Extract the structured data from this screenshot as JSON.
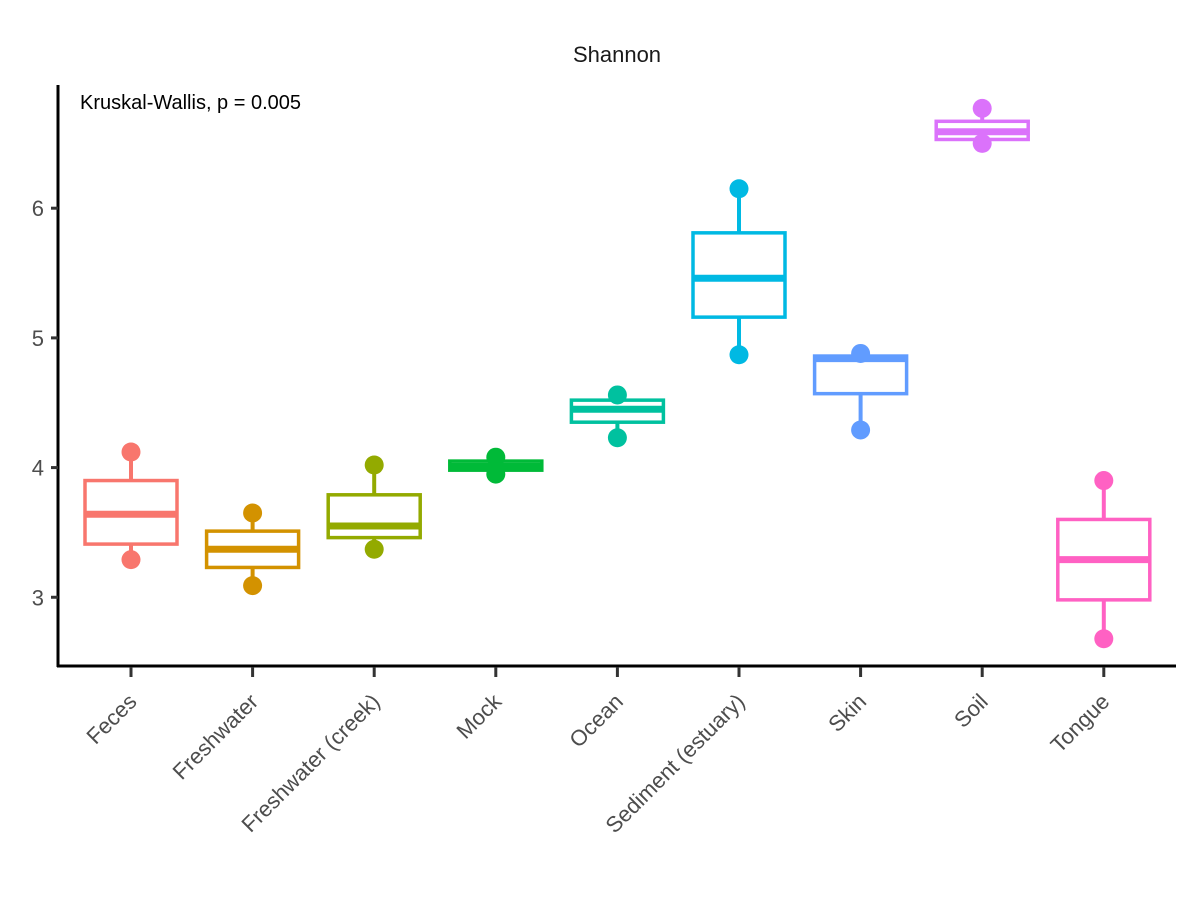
{
  "chart_data": {
    "type": "box",
    "title": "Shannon",
    "annotation": "Kruskal-Wallis, p = 0.005",
    "xlabel": "",
    "ylabel": "",
    "ylim": [
      2.47,
      6.95
    ],
    "yticks": [
      3,
      4,
      5,
      6
    ],
    "grid": false,
    "legend": "none",
    "categories": [
      "Feces",
      "Freshwater",
      "Freshwater (creek)",
      "Mock",
      "Ocean",
      "Sediment (estuary)",
      "Skin",
      "Soil",
      "Tongue"
    ],
    "boxes": [
      {
        "category": "Feces",
        "color": "#F8766D",
        "q1": 3.41,
        "median": 3.64,
        "q3": 3.9,
        "whisker_low": 3.29,
        "whisker_high": 4.12,
        "points": [
          3.29,
          4.12
        ]
      },
      {
        "category": "Freshwater",
        "color": "#D39200",
        "q1": 3.23,
        "median": 3.37,
        "q3": 3.51,
        "whisker_low": 3.09,
        "whisker_high": 3.65,
        "points": [
          3.09,
          3.65
        ]
      },
      {
        "category": "Freshwater (creek)",
        "color": "#93AA00",
        "q1": 3.46,
        "median": 3.55,
        "q3": 3.79,
        "whisker_low": 3.37,
        "whisker_high": 4.02,
        "points": [
          3.37,
          4.02
        ]
      },
      {
        "category": "Mock",
        "color": "#00BA38",
        "q1": 3.98,
        "median": 4.01,
        "q3": 4.05,
        "whisker_low": 3.95,
        "whisker_high": 4.08,
        "points": [
          3.95,
          4.08
        ]
      },
      {
        "category": "Ocean",
        "color": "#00C19F",
        "q1": 4.35,
        "median": 4.45,
        "q3": 4.52,
        "whisker_low": 4.23,
        "whisker_high": 4.56,
        "points": [
          4.23,
          4.56
        ]
      },
      {
        "category": "Sediment (estuary)",
        "color": "#00B9E3",
        "q1": 5.16,
        "median": 5.46,
        "q3": 5.81,
        "whisker_low": 4.87,
        "whisker_high": 6.15,
        "points": [
          4.87,
          6.15
        ]
      },
      {
        "category": "Skin",
        "color": "#619CFF",
        "q1": 4.57,
        "median": 4.84,
        "q3": 4.86,
        "whisker_low": 4.29,
        "whisker_high": 4.88,
        "points": [
          4.29,
          4.88
        ]
      },
      {
        "category": "Soil",
        "color": "#DB72FB",
        "q1": 6.53,
        "median": 6.59,
        "q3": 6.67,
        "whisker_low": 6.5,
        "whisker_high": 6.77,
        "points": [
          6.5,
          6.77
        ]
      },
      {
        "category": "Tongue",
        "color": "#FF61C3",
        "q1": 2.98,
        "median": 3.29,
        "q3": 3.6,
        "whisker_low": 2.68,
        "whisker_high": 3.9,
        "points": [
          2.68,
          3.9
        ]
      }
    ]
  }
}
